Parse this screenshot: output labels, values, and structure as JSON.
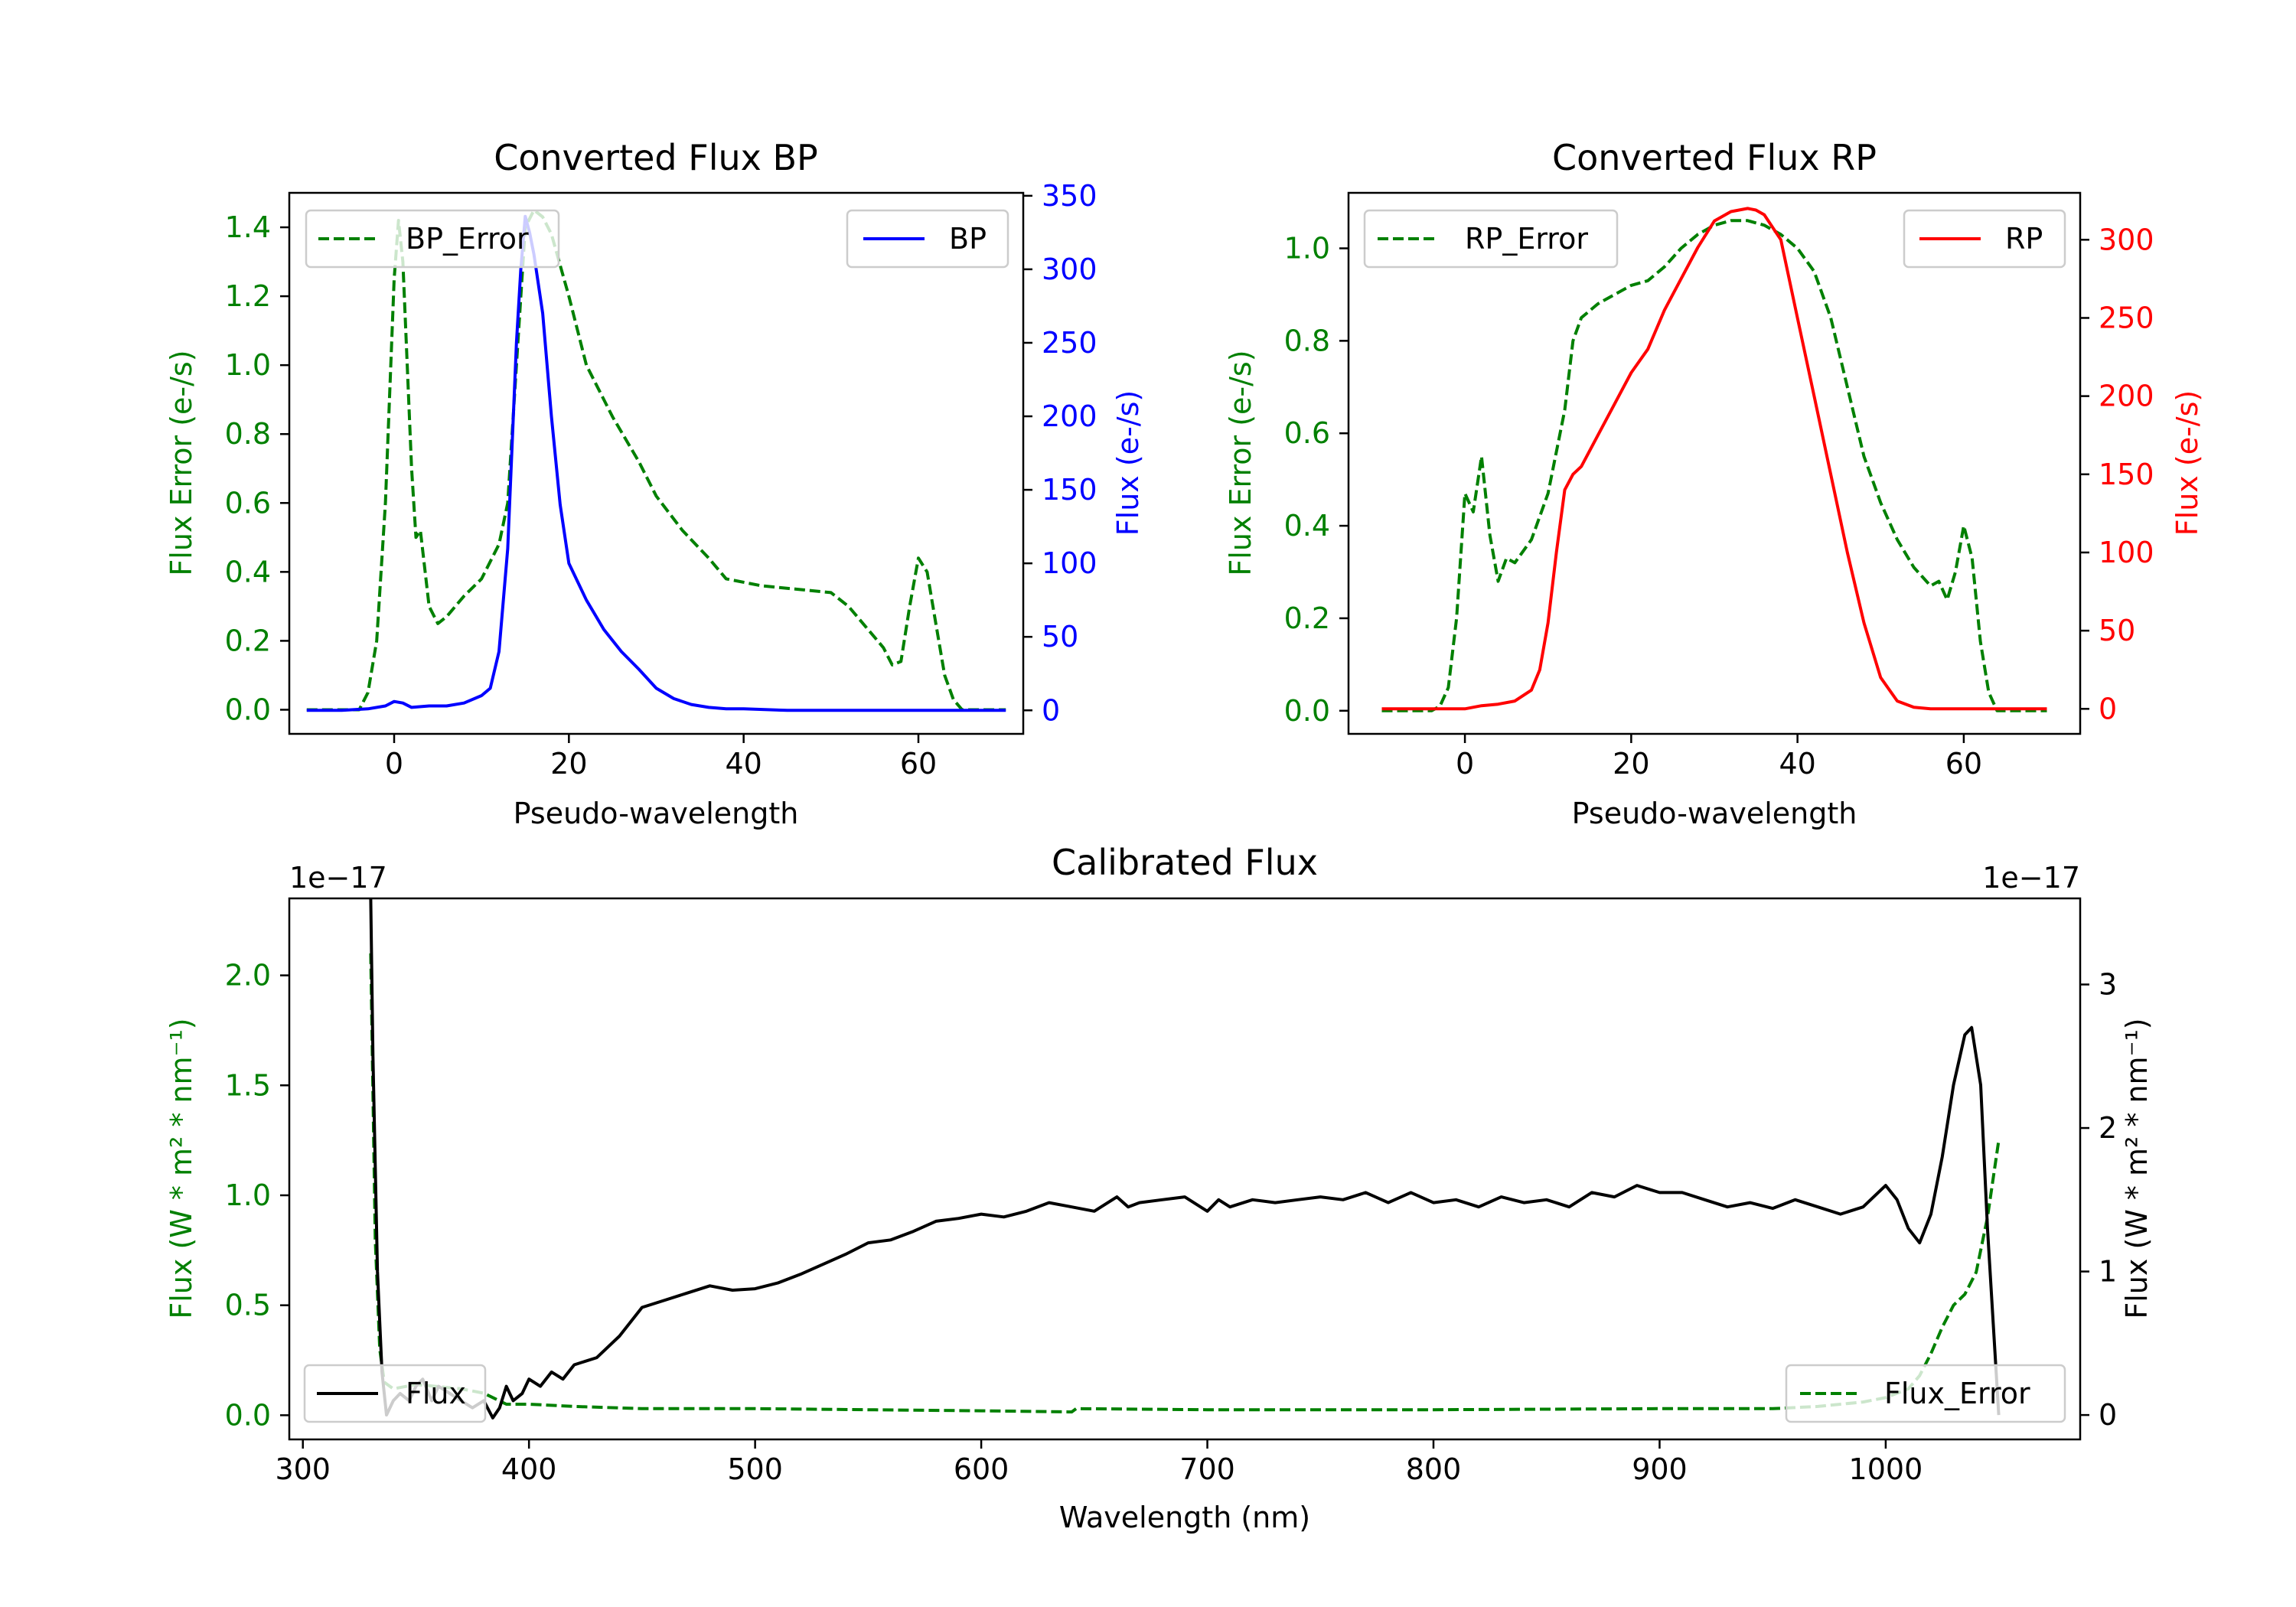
{
  "colors": {
    "green": "#008000",
    "blue": "#0000ff",
    "red": "#ff0000",
    "black": "#000000",
    "axis": "#000000",
    "legend_border": "#cccccc"
  },
  "chart_data": [
    {
      "type": "line",
      "id": "bp",
      "title": "Converted Flux BP",
      "xlabel": "Pseudo-wavelength",
      "ylabel_left": "Flux Error (e-/s)",
      "ylabel_right": "Flux (e-/s)",
      "xlim": [
        -12,
        72
      ],
      "ylim_left": [
        -0.07,
        1.5
      ],
      "ylim_right": [
        -16,
        352
      ],
      "xticks": [
        0,
        20,
        40,
        60
      ],
      "yticks_left": [
        0.0,
        0.2,
        0.4,
        0.6,
        0.8,
        1.0,
        1.2,
        1.4
      ],
      "yticks_right": [
        0,
        50,
        100,
        150,
        200,
        250,
        300,
        350
      ],
      "left_tick_decimals": 1,
      "right_tick_decimals": 0,
      "left_color": "#008000",
      "right_color": "#0000ff",
      "series": [
        {
          "name": "BP_Error",
          "axis": "left",
          "color": "#008000",
          "style": "dashed",
          "x": [
            -10,
            -4,
            -3,
            -2,
            -1,
            0,
            0.5,
            1,
            2,
            2.5,
            3,
            4,
            5,
            6,
            8,
            10,
            12,
            13,
            14,
            15,
            16,
            17,
            18,
            20,
            22,
            25,
            28,
            30,
            33,
            36,
            38,
            42,
            46,
            50,
            52,
            54,
            56,
            57,
            58,
            59,
            60,
            61,
            62,
            63,
            64,
            65,
            70
          ],
          "y": [
            0,
            0,
            0.05,
            0.2,
            0.6,
            1.25,
            1.42,
            1.3,
            0.7,
            0.5,
            0.52,
            0.3,
            0.25,
            0.27,
            0.33,
            0.38,
            0.48,
            0.6,
            1.0,
            1.4,
            1.45,
            1.43,
            1.38,
            1.2,
            1.0,
            0.85,
            0.72,
            0.62,
            0.52,
            0.44,
            0.38,
            0.36,
            0.35,
            0.34,
            0.3,
            0.24,
            0.18,
            0.13,
            0.14,
            0.3,
            0.44,
            0.4,
            0.25,
            0.1,
            0.03,
            0,
            0
          ]
        },
        {
          "name": "BP",
          "axis": "right",
          "color": "#0000ff",
          "style": "solid",
          "x": [
            -10,
            -6,
            -3,
            -1,
            0,
            1,
            2,
            4,
            6,
            8,
            10,
            11,
            12,
            13,
            13.5,
            14,
            14.5,
            15,
            15.5,
            16,
            17,
            18,
            19,
            20,
            22,
            24,
            26,
            28,
            30,
            32,
            34,
            36,
            38,
            40,
            45,
            50,
            55,
            60,
            65,
            70
          ],
          "y": [
            0,
            0,
            1,
            3,
            6,
            5,
            2,
            3,
            3,
            5,
            10,
            15,
            40,
            110,
            180,
            250,
            300,
            336,
            325,
            310,
            270,
            200,
            140,
            100,
            75,
            55,
            40,
            28,
            15,
            8,
            4,
            2,
            1,
            1,
            0,
            0,
            0,
            0,
            0,
            0
          ]
        }
      ],
      "legends": [
        {
          "label": "BP_Error",
          "placement": "upper left"
        },
        {
          "label": "BP",
          "placement": "upper right"
        }
      ]
    },
    {
      "type": "line",
      "id": "rp",
      "title": "Converted Flux RP",
      "xlabel": "Pseudo-wavelength",
      "ylabel_left": "Flux Error (e-/s)",
      "ylabel_right": "Flux (e-/s)",
      "xlim": [
        -14,
        74
      ],
      "ylim_left": [
        -0.05,
        1.12
      ],
      "ylim_right": [
        -16,
        330
      ],
      "xticks": [
        0,
        20,
        40,
        60
      ],
      "yticks_left": [
        0.0,
        0.2,
        0.4,
        0.6,
        0.8,
        1.0
      ],
      "yticks_right": [
        0,
        50,
        100,
        150,
        200,
        250,
        300
      ],
      "left_tick_decimals": 1,
      "right_tick_decimals": 0,
      "left_color": "#008000",
      "right_color": "#ff0000",
      "series": [
        {
          "name": "RP_Error",
          "axis": "left",
          "color": "#008000",
          "style": "dashed",
          "x": [
            -10,
            -4,
            -3,
            -2,
            -1,
            0,
            1,
            2,
            3,
            4,
            5,
            6,
            8,
            10,
            12,
            13,
            14,
            16,
            18,
            20,
            22,
            24,
            26,
            28,
            30,
            32,
            34,
            36,
            38,
            40,
            42,
            44,
            46,
            48,
            50,
            52,
            54,
            55,
            56,
            57,
            58,
            59,
            60,
            61,
            62,
            63,
            64,
            70
          ],
          "y": [
            0,
            0,
            0.01,
            0.05,
            0.2,
            0.47,
            0.43,
            0.55,
            0.38,
            0.28,
            0.33,
            0.32,
            0.37,
            0.47,
            0.65,
            0.8,
            0.85,
            0.88,
            0.9,
            0.92,
            0.93,
            0.96,
            1.0,
            1.03,
            1.05,
            1.06,
            1.06,
            1.05,
            1.03,
            1.0,
            0.95,
            0.85,
            0.7,
            0.55,
            0.45,
            0.37,
            0.31,
            0.29,
            0.27,
            0.28,
            0.24,
            0.3,
            0.4,
            0.33,
            0.15,
            0.04,
            0,
            0
          ]
        },
        {
          "name": "RP",
          "axis": "right",
          "color": "#ff0000",
          "style": "solid",
          "x": [
            -10,
            -4,
            -2,
            0,
            2,
            4,
            6,
            8,
            9,
            10,
            11,
            12,
            13,
            14,
            16,
            18,
            20,
            22,
            24,
            26,
            28,
            30,
            32,
            34,
            35,
            36,
            38,
            40,
            42,
            44,
            46,
            48,
            50,
            52,
            54,
            56,
            58,
            60,
            62,
            65,
            70
          ],
          "y": [
            0,
            0,
            0,
            0,
            2,
            3,
            5,
            12,
            25,
            55,
            100,
            140,
            150,
            155,
            175,
            195,
            215,
            230,
            255,
            275,
            295,
            312,
            318,
            320,
            319,
            316,
            300,
            250,
            200,
            150,
            100,
            55,
            20,
            5,
            1,
            0,
            0,
            0,
            0,
            0,
            0
          ]
        }
      ],
      "legends": [
        {
          "label": "RP_Error",
          "placement": "upper left"
        },
        {
          "label": "RP",
          "placement": "upper right"
        }
      ]
    },
    {
      "type": "line",
      "id": "calibrated",
      "title": "Calibrated Flux",
      "xlabel": "Wavelength (nm)",
      "ylabel_left": "Flux (W * m² * nm⁻¹)",
      "ylabel_right": "Flux (W * m² * nm⁻¹)",
      "offset_left": "1e−17",
      "offset_right": "1e−17",
      "xlim": [
        294,
        1086
      ],
      "ylim_left": [
        -0.11,
        2.35
      ],
      "ylim_right": [
        -0.17,
        3.6
      ],
      "xticks": [
        300,
        400,
        500,
        600,
        700,
        800,
        900,
        1000
      ],
      "yticks_left": [
        0.0,
        0.5,
        1.0,
        1.5,
        2.0
      ],
      "yticks_right": [
        0,
        1,
        2,
        3
      ],
      "left_tick_decimals": 1,
      "right_tick_decimals": 0,
      "left_color": "#008000",
      "right_color": "#000000",
      "series": [
        {
          "name": "Flux_Error",
          "axis": "left",
          "color": "#008000",
          "style": "dashed",
          "x": [
            330,
            332,
            334,
            336,
            340,
            350,
            360,
            370,
            380,
            390,
            400,
            420,
            450,
            500,
            550,
            600,
            640,
            642,
            700,
            800,
            900,
            950,
            970,
            980,
            990,
            1000,
            1010,
            1015,
            1020,
            1025,
            1030,
            1035,
            1040,
            1045,
            1050
          ],
          "y": [
            2.1,
            0.8,
            0.3,
            0.15,
            0.12,
            0.14,
            0.13,
            0.12,
            0.1,
            0.05,
            0.05,
            0.04,
            0.03,
            0.03,
            0.025,
            0.02,
            0.015,
            0.03,
            0.025,
            0.025,
            0.03,
            0.03,
            0.04,
            0.05,
            0.06,
            0.08,
            0.12,
            0.18,
            0.28,
            0.4,
            0.5,
            0.55,
            0.65,
            0.9,
            1.25
          ]
        },
        {
          "name": "Flux",
          "axis": "right",
          "color": "#000000",
          "style": "solid",
          "x": [
            330,
            331,
            333,
            335,
            337,
            340,
            343,
            347,
            350,
            353,
            357,
            360,
            365,
            370,
            375,
            380,
            384,
            387,
            390,
            393,
            397,
            400,
            405,
            410,
            415,
            420,
            430,
            440,
            450,
            460,
            470,
            480,
            490,
            500,
            510,
            520,
            530,
            540,
            550,
            560,
            570,
            580,
            590,
            600,
            610,
            620,
            630,
            640,
            650,
            660,
            665,
            670,
            680,
            690,
            700,
            705,
            710,
            720,
            730,
            740,
            750,
            760,
            770,
            780,
            790,
            800,
            810,
            820,
            830,
            840,
            850,
            860,
            870,
            880,
            890,
            900,
            910,
            920,
            930,
            940,
            950,
            960,
            970,
            980,
            990,
            1000,
            1005,
            1010,
            1015,
            1020,
            1025,
            1030,
            1035,
            1038,
            1042,
            1045,
            1050
          ],
          "y": [
            3.6,
            2.5,
            1.0,
            0.3,
            0.0,
            0.1,
            0.15,
            0.1,
            0.2,
            0.25,
            0.1,
            0.2,
            0.15,
            0.1,
            0.05,
            0.1,
            -0.02,
            0.05,
            0.2,
            0.1,
            0.15,
            0.25,
            0.2,
            0.3,
            0.25,
            0.35,
            0.4,
            0.55,
            0.75,
            0.8,
            0.85,
            0.9,
            0.87,
            0.88,
            0.92,
            0.98,
            1.05,
            1.12,
            1.2,
            1.22,
            1.28,
            1.35,
            1.37,
            1.4,
            1.38,
            1.42,
            1.48,
            1.45,
            1.42,
            1.52,
            1.45,
            1.48,
            1.5,
            1.52,
            1.42,
            1.5,
            1.45,
            1.5,
            1.48,
            1.5,
            1.52,
            1.5,
            1.55,
            1.48,
            1.55,
            1.48,
            1.5,
            1.45,
            1.52,
            1.48,
            1.5,
            1.45,
            1.55,
            1.52,
            1.6,
            1.55,
            1.55,
            1.5,
            1.45,
            1.48,
            1.44,
            1.5,
            1.45,
            1.4,
            1.45,
            1.6,
            1.5,
            1.3,
            1.2,
            1.4,
            1.8,
            2.3,
            2.65,
            2.7,
            2.3,
            1.3,
            0.0
          ]
        }
      ],
      "legends": [
        {
          "label": "Flux",
          "placement": "lower left"
        },
        {
          "label": "Flux_Error",
          "placement": "lower right"
        }
      ]
    }
  ]
}
